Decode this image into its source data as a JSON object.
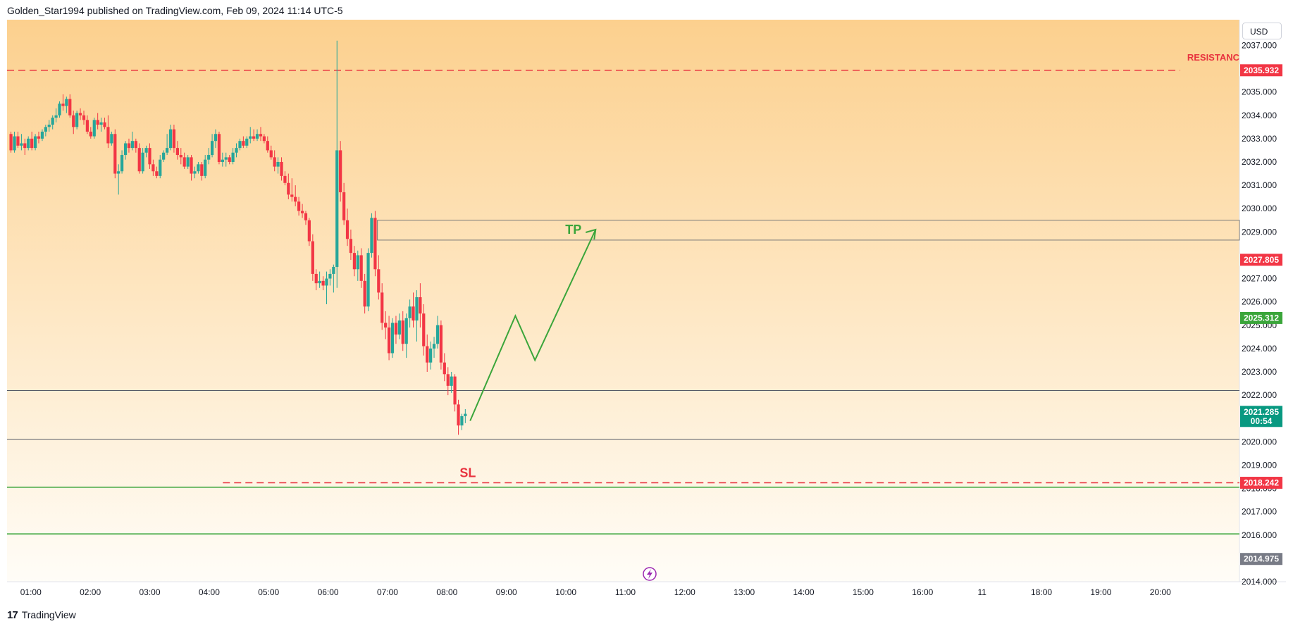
{
  "header": {
    "publisher_line": "Golden_Star1994 published on TradingView.com, Feb 09, 2024 11:14 UTC-5"
  },
  "footer": {
    "brand_text": "TradingView",
    "logo_glyph": "17"
  },
  "toolbar": {
    "currency": "USD"
  },
  "colors": {
    "up": "#26a69a",
    "down": "#f23645",
    "bg_top": "#fcd08e",
    "bg_bottom": "#fffdf8",
    "green_line": "#3aa53a",
    "red_dash": "#e8333f",
    "gray_label": "#787b86"
  },
  "chart_data": {
    "type": "candlestick",
    "instrument_currency": "USD",
    "time_axis_labels": [
      "01:00",
      "02:00",
      "03:00",
      "04:00",
      "05:00",
      "06:00",
      "07:00",
      "08:00",
      "09:00",
      "10:00",
      "11:00",
      "12:00",
      "13:00",
      "14:00",
      "15:00",
      "16:00",
      "11",
      "18:00",
      "19:00",
      "20:00"
    ],
    "price_axis_labels": [
      "2037.000",
      "2035.000",
      "2034.000",
      "2033.000",
      "2032.000",
      "2031.000",
      "2030.000",
      "2029.000",
      "2027.000",
      "2026.000",
      "2025.000",
      "2024.000",
      "2023.000",
      "2022.000",
      "2020.000",
      "2019.000",
      "2018.000",
      "2017.000",
      "2016.000",
      "2014.000"
    ],
    "ylim": [
      2014.0,
      2038.1
    ],
    "xlim": [
      0.6,
      21.33
    ],
    "candle_interval_minutes": 5,
    "candles": [
      [
        0.666,
        2033.2,
        2033.3,
        2032.4,
        2032.5
      ],
      [
        0.725,
        2032.5,
        2033.3,
        2032.4,
        2033.1
      ],
      [
        0.783,
        2033.1,
        2033.3,
        2032.6,
        2032.7
      ],
      [
        0.842,
        2032.7,
        2033.2,
        2032.5,
        2032.8
      ],
      [
        0.9,
        2032.8,
        2033.0,
        2032.3,
        2032.6
      ],
      [
        0.958,
        2032.6,
        2033.1,
        2032.5,
        2033.0
      ],
      [
        1.017,
        2033.0,
        2033.3,
        2032.5,
        2032.6
      ],
      [
        1.075,
        2032.6,
        2033.2,
        2032.5,
        2033.1
      ],
      [
        1.133,
        2033.1,
        2033.3,
        2032.8,
        2033.0
      ],
      [
        1.192,
        2033.0,
        2033.4,
        2032.9,
        2033.3
      ],
      [
        1.25,
        2033.3,
        2033.6,
        2033.1,
        2033.5
      ],
      [
        1.308,
        2033.5,
        2033.8,
        2033.3,
        2033.6
      ],
      [
        1.367,
        2033.6,
        2034.0,
        2033.4,
        2033.9
      ],
      [
        1.425,
        2033.9,
        2034.3,
        2033.7,
        2034.0
      ],
      [
        1.483,
        2034.0,
        2034.6,
        2033.9,
        2034.5
      ],
      [
        1.542,
        2034.5,
        2034.9,
        2034.2,
        2034.4
      ],
      [
        1.6,
        2034.4,
        2034.8,
        2034.1,
        2034.7
      ],
      [
        1.658,
        2034.7,
        2034.9,
        2033.9,
        2034.0
      ],
      [
        1.717,
        2034.0,
        2034.2,
        2033.2,
        2033.5
      ],
      [
        1.775,
        2033.5,
        2034.2,
        2033.4,
        2034.1
      ],
      [
        1.833,
        2034.1,
        2034.3,
        2033.8,
        2034.0
      ],
      [
        1.892,
        2034.0,
        2034.2,
        2033.6,
        2033.8
      ],
      [
        1.95,
        2033.8,
        2034.0,
        2033.2,
        2033.3
      ],
      [
        2.008,
        2033.3,
        2033.5,
        2033.0,
        2033.1
      ],
      [
        2.067,
        2033.1,
        2033.9,
        2033.0,
        2033.8
      ],
      [
        2.125,
        2033.8,
        2034.1,
        2033.4,
        2033.6
      ],
      [
        2.183,
        2033.6,
        2033.9,
        2033.3,
        2033.7
      ],
      [
        2.242,
        2033.7,
        2033.9,
        2033.4,
        2033.5
      ],
      [
        2.3,
        2033.5,
        2034.0,
        2032.6,
        2032.8
      ],
      [
        2.358,
        2032.8,
        2033.3,
        2032.7,
        2033.2
      ],
      [
        2.417,
        2033.2,
        2033.4,
        2031.3,
        2031.5
      ],
      [
        2.475,
        2031.5,
        2031.9,
        2030.6,
        2031.6
      ],
      [
        2.533,
        2031.6,
        2032.5,
        2031.5,
        2032.3
      ],
      [
        2.592,
        2032.3,
        2032.9,
        2032.1,
        2032.8
      ],
      [
        2.65,
        2032.8,
        2033.0,
        2032.4,
        2032.6
      ],
      [
        2.708,
        2032.6,
        2033.3,
        2032.5,
        2032.9
      ],
      [
        2.767,
        2032.9,
        2033.0,
        2032.4,
        2032.6
      ],
      [
        2.825,
        2032.6,
        2032.8,
        2031.5,
        2031.6
      ],
      [
        2.883,
        2031.6,
        2032.6,
        2031.5,
        2032.4
      ],
      [
        2.942,
        2032.4,
        2032.7,
        2032.2,
        2032.6
      ],
      [
        3.0,
        2032.6,
        2032.8,
        2031.7,
        2031.9
      ],
      [
        3.058,
        2031.9,
        2032.1,
        2031.4,
        2031.6
      ],
      [
        3.117,
        2031.6,
        2031.8,
        2031.3,
        2031.4
      ],
      [
        3.175,
        2031.4,
        2032.3,
        2031.3,
        2032.1
      ],
      [
        3.233,
        2032.1,
        2032.5,
        2032.0,
        2032.4
      ],
      [
        3.292,
        2032.4,
        2033.2,
        2032.3,
        2032.6
      ],
      [
        3.35,
        2032.6,
        2033.6,
        2032.5,
        2033.4
      ],
      [
        3.408,
        2033.4,
        2033.6,
        2032.4,
        2032.6
      ],
      [
        3.467,
        2032.6,
        2032.9,
        2032.1,
        2032.3
      ],
      [
        3.525,
        2032.3,
        2032.6,
        2031.9,
        2032.2
      ],
      [
        3.583,
        2032.2,
        2032.4,
        2031.7,
        2031.8
      ],
      [
        3.642,
        2031.8,
        2032.3,
        2031.7,
        2032.2
      ],
      [
        3.7,
        2032.2,
        2032.3,
        2031.2,
        2031.5
      ],
      [
        3.758,
        2031.5,
        2031.8,
        2031.3,
        2031.6
      ],
      [
        3.817,
        2031.6,
        2032.0,
        2031.5,
        2031.9
      ],
      [
        3.875,
        2031.9,
        2032.0,
        2031.2,
        2031.4
      ],
      [
        3.933,
        2031.4,
        2032.3,
        2031.3,
        2032.1
      ],
      [
        3.992,
        2032.1,
        2032.6,
        2031.9,
        2032.3
      ],
      [
        4.05,
        2032.3,
        2033.2,
        2032.2,
        2032.9
      ],
      [
        4.108,
        2032.9,
        2033.4,
        2032.6,
        2033.2
      ],
      [
        4.167,
        2033.2,
        2033.3,
        2031.9,
        2032.0
      ],
      [
        4.225,
        2032.0,
        2032.4,
        2031.8,
        2032.1
      ],
      [
        4.283,
        2032.1,
        2032.4,
        2031.8,
        2032.2
      ],
      [
        4.342,
        2032.2,
        2032.3,
        2031.9,
        2032.0
      ],
      [
        4.4,
        2032.0,
        2032.6,
        2031.9,
        2032.4
      ],
      [
        4.458,
        2032.4,
        2032.8,
        2032.2,
        2032.6
      ],
      [
        4.517,
        2032.6,
        2033.0,
        2032.5,
        2032.9
      ],
      [
        4.575,
        2032.9,
        2033.1,
        2032.6,
        2032.7
      ],
      [
        4.633,
        2032.7,
        2033.1,
        2032.6,
        2033.0
      ],
      [
        4.692,
        2033.0,
        2033.5,
        2032.8,
        2033.1
      ],
      [
        4.75,
        2033.1,
        2033.4,
        2032.9,
        2033.0
      ],
      [
        4.808,
        2033.0,
        2033.4,
        2032.9,
        2033.2
      ],
      [
        4.867,
        2033.2,
        2033.5,
        2032.9,
        2033.1
      ],
      [
        4.925,
        2033.1,
        2033.2,
        2032.8,
        2032.9
      ],
      [
        4.983,
        2032.9,
        2033.1,
        2032.4,
        2032.5
      ],
      [
        5.042,
        2032.5,
        2032.7,
        2032.1,
        2032.2
      ],
      [
        5.1,
        2032.2,
        2032.5,
        2031.6,
        2031.8
      ],
      [
        5.158,
        2031.8,
        2032.2,
        2031.5,
        2032.0
      ],
      [
        5.217,
        2032.0,
        2032.2,
        2031.2,
        2031.4
      ],
      [
        5.275,
        2031.4,
        2031.6,
        2031.0,
        2031.1
      ],
      [
        5.333,
        2031.1,
        2031.5,
        2030.4,
        2030.6
      ],
      [
        5.392,
        2030.6,
        2031.3,
        2030.3,
        2030.5
      ],
      [
        5.45,
        2030.5,
        2031.0,
        2030.1,
        2030.3
      ],
      [
        5.508,
        2030.3,
        2030.5,
        2029.7,
        2029.9
      ],
      [
        5.567,
        2029.9,
        2030.2,
        2029.6,
        2029.8
      ],
      [
        5.625,
        2029.8,
        2029.9,
        2029.3,
        2029.5
      ],
      [
        5.683,
        2029.5,
        2029.6,
        2028.4,
        2028.6
      ],
      [
        5.742,
        2028.6,
        2028.9,
        2026.9,
        2027.2
      ],
      [
        5.8,
        2027.2,
        2027.4,
        2026.5,
        2026.8
      ],
      [
        5.858,
        2026.8,
        2027.3,
        2026.6,
        2026.9
      ],
      [
        5.917,
        2026.9,
        2027.1,
        2026.5,
        2026.7
      ],
      [
        5.975,
        2026.7,
        2027.3,
        2025.9,
        2027.0
      ],
      [
        6.033,
        2027.0,
        2027.4,
        2026.7,
        2027.2
      ],
      [
        6.092,
        2027.2,
        2027.6,
        2026.4,
        2027.5
      ],
      [
        6.15,
        2027.5,
        2037.2,
        2026.6,
        2032.5
      ],
      [
        6.208,
        2032.5,
        2032.9,
        2030.3,
        2030.7
      ],
      [
        6.267,
        2030.7,
        2031.1,
        2029.3,
        2029.5
      ],
      [
        6.325,
        2029.5,
        2030.0,
        2028.4,
        2028.7
      ],
      [
        6.383,
        2028.7,
        2029.1,
        2027.8,
        2028.1
      ],
      [
        6.442,
        2028.1,
        2028.4,
        2027.1,
        2027.4
      ],
      [
        6.5,
        2027.4,
        2028.2,
        2026.9,
        2028.0
      ],
      [
        6.558,
        2028.0,
        2028.3,
        2026.6,
        2026.9
      ],
      [
        6.617,
        2026.9,
        2027.2,
        2025.5,
        2025.8
      ],
      [
        6.675,
        2025.8,
        2028.3,
        2025.6,
        2028.1
      ],
      [
        6.733,
        2028.1,
        2029.8,
        2027.9,
        2029.6
      ],
      [
        6.792,
        2029.6,
        2029.9,
        2027.1,
        2027.4
      ],
      [
        6.85,
        2027.4,
        2028.0,
        2026.1,
        2026.4
      ],
      [
        6.908,
        2026.4,
        2026.8,
        2024.8,
        2025.1
      ],
      [
        6.967,
        2025.1,
        2025.6,
        2024.4,
        2024.9
      ],
      [
        7.025,
        2024.9,
        2025.4,
        2023.5,
        2023.8
      ],
      [
        7.083,
        2023.8,
        2025.3,
        2023.6,
        2025.1
      ],
      [
        7.142,
        2025.1,
        2025.4,
        2024.2,
        2024.6
      ],
      [
        7.2,
        2024.6,
        2025.5,
        2024.4,
        2025.2
      ],
      [
        7.258,
        2025.2,
        2025.6,
        2023.9,
        2024.2
      ],
      [
        7.317,
        2024.2,
        2025.5,
        2023.6,
        2025.3
      ],
      [
        7.375,
        2025.3,
        2026.1,
        2024.9,
        2025.8
      ],
      [
        7.433,
        2025.8,
        2026.4,
        2024.9,
        2025.2
      ],
      [
        7.492,
        2025.2,
        2026.5,
        2024.3,
        2026.2
      ],
      [
        7.55,
        2026.2,
        2026.8,
        2024.9,
        2025.5
      ],
      [
        7.608,
        2025.5,
        2025.9,
        2023.7,
        2024.1
      ],
      [
        7.667,
        2024.1,
        2024.6,
        2023.0,
        2023.4
      ],
      [
        7.725,
        2023.4,
        2024.3,
        2023.1,
        2024.0
      ],
      [
        7.783,
        2024.0,
        2024.5,
        2023.6,
        2024.2
      ],
      [
        7.842,
        2024.2,
        2025.4,
        2024.0,
        2025.0
      ],
      [
        7.9,
        2025.0,
        2025.2,
        2023.1,
        2023.4
      ],
      [
        7.958,
        2023.4,
        2023.8,
        2022.6,
        2022.9
      ],
      [
        8.017,
        2022.9,
        2023.2,
        2022.0,
        2022.4
      ],
      [
        8.075,
        2022.4,
        2023.0,
        2022.1,
        2022.8
      ],
      [
        8.133,
        2022.8,
        2022.9,
        2021.3,
        2021.6
      ],
      [
        8.192,
        2021.6,
        2021.8,
        2020.3,
        2020.7
      ],
      [
        8.25,
        2020.7,
        2021.2,
        2020.5,
        2021.1
      ],
      [
        8.308,
        2021.1,
        2021.4,
        2020.8,
        2021.2
      ]
    ]
  },
  "annotations": {
    "resistance_label": "RESISTANC",
    "resistance_level": 2035.932,
    "tp_label": "TP",
    "sl_label": "SL",
    "sl_level": 2018.242,
    "zone_box": {
      "x_start": 6.83,
      "x_end": 21.33,
      "top": 2029.5,
      "bottom": 2028.65
    },
    "range_lines": [
      2022.2,
      2020.1
    ],
    "green_lines": [
      2018.05,
      2016.05
    ],
    "projection_path": [
      [
        8.39,
        2020.9
      ],
      [
        9.15,
        2025.4
      ],
      [
        9.48,
        2023.5
      ],
      [
        10.5,
        2029.1
      ]
    ]
  },
  "price_labels": [
    {
      "text": "2035.932",
      "value": 2035.932,
      "color": "#f23645"
    },
    {
      "text": "2027.805",
      "value": 2027.805,
      "color": "#f23645"
    },
    {
      "text": "2025.312",
      "value": 2025.312,
      "color": "#3aa53a"
    },
    {
      "text": "2021.285",
      "value": 2021.285,
      "color": "#089981",
      "sub": "00:54"
    },
    {
      "text": "2018.242",
      "value": 2018.242,
      "color": "#f23645"
    },
    {
      "text": "2014.975",
      "value": 2014.975,
      "color": "#787b86"
    }
  ]
}
